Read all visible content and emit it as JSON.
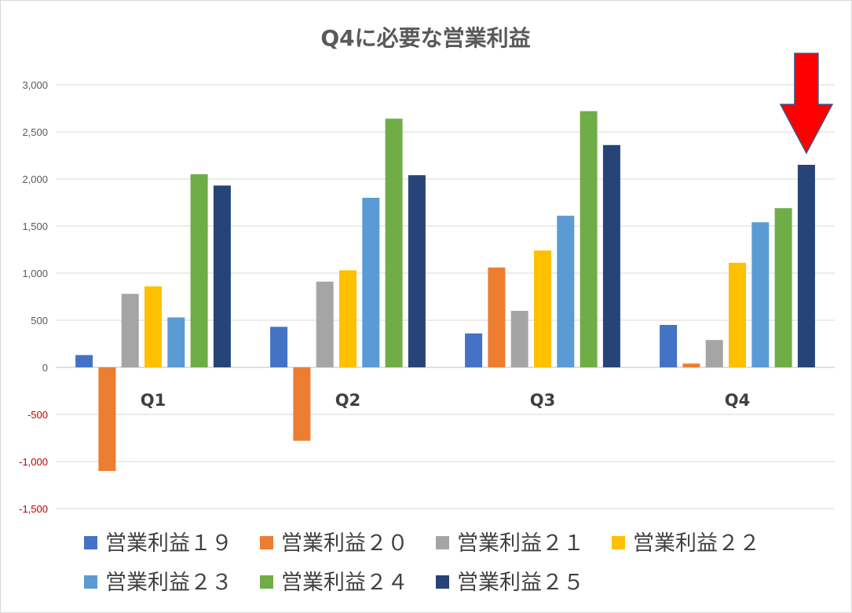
{
  "chart_data": {
    "type": "bar",
    "title": "Q4に必要な営業利益",
    "categories": [
      "Q1",
      "Q2",
      "Q3",
      "Q4"
    ],
    "series": [
      {
        "name": "営業利益１９",
        "color": "#4472C4",
        "values": [
          130,
          430,
          360,
          450
        ]
      },
      {
        "name": "営業利益２０",
        "color": "#ED7D31",
        "values": [
          -1100,
          -780,
          1060,
          40
        ]
      },
      {
        "name": "営業利益２１",
        "color": "#A5A5A5",
        "values": [
          780,
          910,
          600,
          290
        ]
      },
      {
        "name": "営業利益２２",
        "color": "#FFC000",
        "values": [
          860,
          1030,
          1240,
          1110
        ]
      },
      {
        "name": "営業利益２３",
        "color": "#5B9BD5",
        "values": [
          530,
          1800,
          1610,
          1540
        ]
      },
      {
        "name": "営業利益２４",
        "color": "#70AD47",
        "values": [
          2050,
          2640,
          2720,
          1690
        ]
      },
      {
        "name": "営業利益２５",
        "color": "#264478",
        "values": [
          1930,
          2040,
          2360,
          2150
        ]
      }
    ],
    "ylim": [
      -1500,
      3000
    ],
    "yticks": [
      "3,000",
      "2,500",
      "2,000",
      "1,500",
      "1,000",
      "500",
      "0",
      "-500",
      "-1,000",
      "-1,500"
    ],
    "ytick_values": [
      3000,
      2500,
      2000,
      1500,
      1000,
      500,
      0,
      -500,
      -1000,
      -1500
    ],
    "tick_color_positive": "#595959",
    "tick_color_negative": "#C00000",
    "grid": true,
    "legend_position": "bottom",
    "annotation": {
      "type": "arrow",
      "color": "#FF0000",
      "points_to": "Q4 営業利益２５"
    }
  }
}
